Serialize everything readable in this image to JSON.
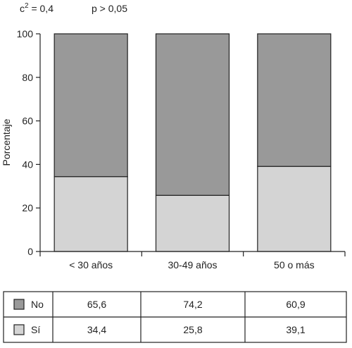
{
  "stats": {
    "chi_symbol": "c",
    "chi_exponent": "2",
    "chi_value": " = 0,4",
    "p_text": "p > 0,05"
  },
  "colors": {
    "no": "#999999",
    "si": "#d4d4d4",
    "axis": "#222222"
  },
  "chart_data": {
    "type": "bar",
    "stacked": true,
    "categories": [
      "< 30 años",
      "30-49 años",
      "50 o más"
    ],
    "series": [
      {
        "name": "Sí",
        "values": [
          34.4,
          25.8,
          39.1
        ]
      },
      {
        "name": "No",
        "values": [
          65.6,
          74.2,
          60.9
        ]
      }
    ],
    "ylabel": "Porcentaje",
    "ylim": [
      0,
      100
    ],
    "yticks": [
      "0",
      "20",
      "40",
      "60",
      "80",
      "100"
    ],
    "grid": false,
    "legend_placement": "table-below"
  },
  "table": {
    "rows": [
      {
        "label": "No",
        "values": [
          "65,6",
          "74,2",
          "60,9"
        ]
      },
      {
        "label": "Sí",
        "values": [
          "34,4",
          "25,8",
          "39,1"
        ]
      }
    ]
  }
}
